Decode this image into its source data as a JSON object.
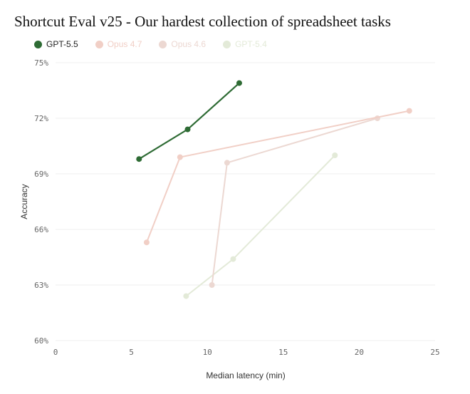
{
  "chart_data": {
    "type": "line",
    "title": "Shortcut Eval v25 - Our hardest collection of spreadsheet tasks",
    "xlabel": "Median latency (min)",
    "ylabel": "Accuracy",
    "xlim": [
      0,
      25
    ],
    "ylim": [
      60,
      75
    ],
    "x_ticks": [
      "0",
      "5",
      "10",
      "15",
      "20",
      "25"
    ],
    "y_ticks": [
      "60%",
      "63%",
      "66%",
      "69%",
      "72%",
      "75%"
    ],
    "grid": "horizontal",
    "legend_position": "top-left",
    "series": [
      {
        "name": "GPT-5.5",
        "color": "#2e6b34",
        "opacity": 1.0,
        "points": [
          {
            "x": 5.5,
            "y": 69.8
          },
          {
            "x": 8.7,
            "y": 71.4
          },
          {
            "x": 12.1,
            "y": 73.9
          }
        ]
      },
      {
        "name": "Opus 4.7",
        "color": "#f1cfc6",
        "opacity": 1.0,
        "points": [
          {
            "x": 6.0,
            "y": 65.3
          },
          {
            "x": 8.2,
            "y": 69.9
          },
          {
            "x": 23.3,
            "y": 72.4
          }
        ]
      },
      {
        "name": "Opus 4.6",
        "color": "#ecd8d2",
        "opacity": 1.0,
        "points": [
          {
            "x": 10.3,
            "y": 63.0
          },
          {
            "x": 11.3,
            "y": 69.6
          },
          {
            "x": 21.2,
            "y": 72.0
          }
        ]
      },
      {
        "name": "GPT-5.4",
        "color": "#e3ead8",
        "opacity": 1.0,
        "points": [
          {
            "x": 8.6,
            "y": 62.4
          },
          {
            "x": 11.7,
            "y": 64.4
          },
          {
            "x": 18.4,
            "y": 70.0
          }
        ]
      }
    ]
  }
}
